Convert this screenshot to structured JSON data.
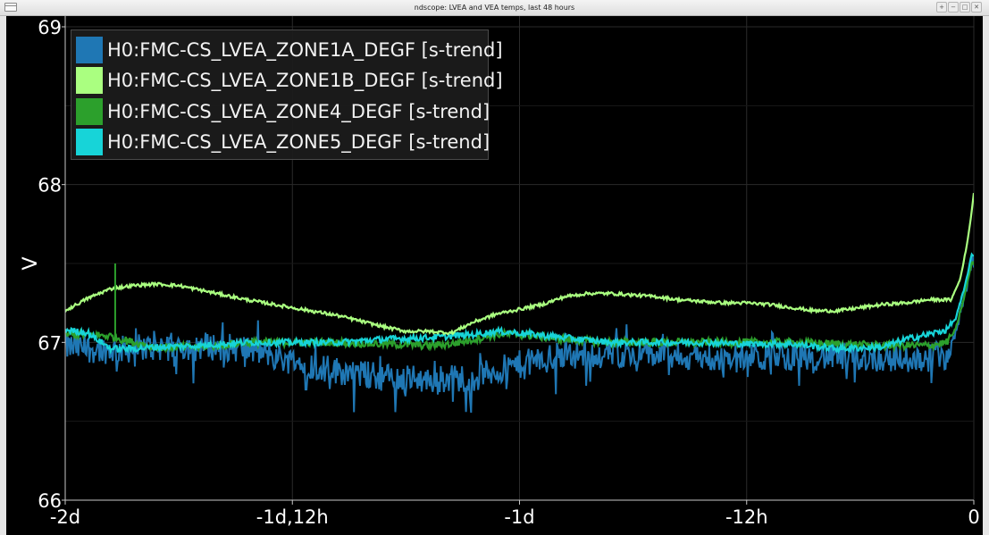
{
  "window": {
    "title": "ndscope: LVEA and VEA temps, last 48 hours",
    "buttons": [
      "+",
      "−",
      "□",
      "✕"
    ]
  },
  "colors": {
    "background": "#000000",
    "grid": "#2a2a2a",
    "axis": "#c8c8c8",
    "text": "#ffffff",
    "series": [
      "#1f77b4",
      "#aaff80",
      "#2ca02c",
      "#17d4d8"
    ]
  },
  "chart_data": {
    "type": "line",
    "title": "",
    "xlabel": "",
    "ylabel": "V",
    "ylim": [
      66,
      69
    ],
    "xlim": [
      -2,
      0
    ],
    "x_unit": "days",
    "x_ticks": [
      {
        "value": -2,
        "label": "-2d"
      },
      {
        "value": -1.5,
        "label": "-1d,12h"
      },
      {
        "value": -1,
        "label": "-1d"
      },
      {
        "value": -0.5,
        "label": "-12h"
      },
      {
        "value": 0,
        "label": "0"
      }
    ],
    "y_ticks": [
      {
        "value": 66,
        "label": "66"
      },
      {
        "value": 67,
        "label": "67"
      },
      {
        "value": 68,
        "label": "68"
      },
      {
        "value": 69,
        "label": "69"
      }
    ],
    "grid": true,
    "legend_position": "top-left",
    "series": [
      {
        "name": "H0:FMC-CS_LVEA_ZONE1A_DEGF [s-trend]",
        "color": "#1f77b4",
        "noise": 0.09,
        "x": [
          -2.0,
          -1.9,
          -1.8,
          -1.7,
          -1.6,
          -1.5,
          -1.4,
          -1.3,
          -1.2,
          -1.1,
          -1.0,
          -0.9,
          -0.8,
          -0.7,
          -0.6,
          -0.5,
          -0.4,
          -0.3,
          -0.2,
          -0.1,
          -0.06,
          -0.04,
          -0.02,
          -0.005
        ],
        "y": [
          66.97,
          66.95,
          66.97,
          66.98,
          66.96,
          66.88,
          66.82,
          66.78,
          66.76,
          66.78,
          66.86,
          66.92,
          66.93,
          66.92,
          66.9,
          66.9,
          66.91,
          66.91,
          66.9,
          66.9,
          66.92,
          67.05,
          67.3,
          67.5
        ]
      },
      {
        "name": "H0:FMC-CS_LVEA_ZONE1B_DEGF [s-trend]",
        "color": "#aaff80",
        "noise": 0.01,
        "x": [
          -2.0,
          -1.95,
          -1.9,
          -1.85,
          -1.8,
          -1.75,
          -1.7,
          -1.65,
          -1.6,
          -1.5,
          -1.4,
          -1.3,
          -1.25,
          -1.2,
          -1.15,
          -1.1,
          -1.05,
          -1.0,
          -0.95,
          -0.9,
          -0.85,
          -0.8,
          -0.75,
          -0.7,
          -0.65,
          -0.6,
          -0.55,
          -0.5,
          -0.45,
          -0.4,
          -0.35,
          -0.3,
          -0.25,
          -0.2,
          -0.15,
          -0.1,
          -0.05,
          -0.03,
          -0.015,
          -0.005,
          0.0
        ],
        "y": [
          67.2,
          67.28,
          67.34,
          67.36,
          67.37,
          67.36,
          67.33,
          67.3,
          67.27,
          67.22,
          67.17,
          67.1,
          67.07,
          67.07,
          67.06,
          67.13,
          67.18,
          67.21,
          67.24,
          67.29,
          67.31,
          67.31,
          67.3,
          67.29,
          67.27,
          67.26,
          67.25,
          67.25,
          67.24,
          67.22,
          67.2,
          67.2,
          67.22,
          67.24,
          67.25,
          67.27,
          67.27,
          67.4,
          67.62,
          67.82,
          67.95
        ]
      },
      {
        "name": "H0:FMC-CS_LVEA_ZONE4_DEGF [s-trend]",
        "color": "#2ca02c",
        "noise": 0.025,
        "x": [
          -2.0,
          -1.95,
          -1.9,
          -1.85,
          -1.8,
          -1.7,
          -1.6,
          -1.5,
          -1.4,
          -1.3,
          -1.2,
          -1.15,
          -1.1,
          -1.05,
          -1.0,
          -0.9,
          -0.8,
          -0.7,
          -0.6,
          -0.5,
          -0.4,
          -0.3,
          -0.2,
          -0.15,
          -0.1,
          -0.06,
          -0.04,
          -0.02,
          -0.005
        ],
        "y": [
          67.05,
          67.05,
          67.04,
          67.0,
          66.97,
          66.97,
          67.0,
          67.0,
          67.0,
          66.99,
          66.98,
          66.99,
          67.02,
          67.05,
          67.05,
          67.02,
          67.0,
          67.0,
          67.0,
          67.0,
          67.0,
          66.99,
          66.98,
          66.98,
          66.98,
          67.0,
          67.08,
          67.3,
          67.5
        ]
      },
      {
        "name": "H0:FMC-CS_LVEA_ZONE5_DEGF [s-trend]",
        "color": "#17d4d8",
        "noise": 0.02,
        "x": [
          -2.0,
          -1.95,
          -1.92,
          -1.9,
          -1.88,
          -1.85,
          -1.8,
          -1.7,
          -1.6,
          -1.5,
          -1.4,
          -1.3,
          -1.2,
          -1.1,
          -1.05,
          -1.0,
          -0.9,
          -0.8,
          -0.7,
          -0.6,
          -0.5,
          -0.4,
          -0.3,
          -0.2,
          -0.15,
          -0.1,
          -0.06,
          -0.04,
          -0.02,
          -0.005
        ],
        "y": [
          67.08,
          67.06,
          67.0,
          66.96,
          66.96,
          66.96,
          66.97,
          66.98,
          67.0,
          67.0,
          67.0,
          67.02,
          67.03,
          67.05,
          67.07,
          67.06,
          67.03,
          67.0,
          67.0,
          67.0,
          66.99,
          66.99,
          66.96,
          66.97,
          67.02,
          67.05,
          67.08,
          67.15,
          67.35,
          67.55
        ]
      }
    ],
    "annotations": [
      {
        "type": "spike",
        "series": 2,
        "x": -1.89,
        "y": 67.5
      }
    ]
  }
}
